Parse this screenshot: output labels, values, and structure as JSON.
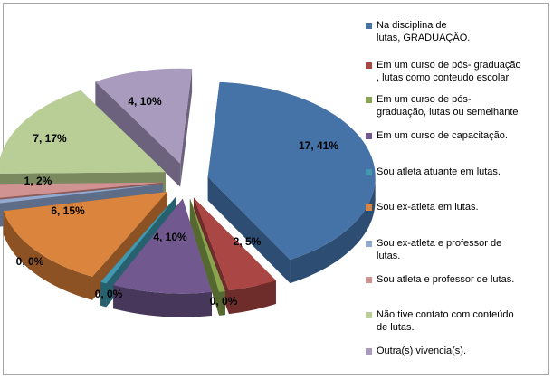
{
  "chart_data": {
    "type": "pie",
    "style": "3d-exploded",
    "legend_position": "right",
    "slices": [
      {
        "label": "Na disciplina de lutas, GRADUAÇÃO.",
        "legend_lines": [
          "Na disciplina de",
          "lutas, GRADUAÇÃO."
        ],
        "value": 17,
        "data_label": "17, 41%",
        "color": "#4572a7",
        "side": "#2e4d73"
      },
      {
        "label": "Em um curso de pós- graduação , lutas como conteudo escolar",
        "legend_lines": [
          "Em um curso de pós- graduação",
          ", lutas como conteudo escolar"
        ],
        "value": 2,
        "data_label": "2, 5%",
        "color": "#aa4643",
        "side": "#6e2c2b"
      },
      {
        "label": "Em um curso de pós- graduação, lutas ou semelhante",
        "legend_lines": [
          "Em um curso de pós-",
          "graduação, lutas ou semelhante"
        ],
        "value": 0,
        "data_label": "0, 0%",
        "color": "#89a54e",
        "side": "#556830"
      },
      {
        "label": "Em um curso de capacitação.",
        "legend_lines": [
          "Em um curso de capacitação."
        ],
        "value": 4,
        "data_label": "4, 10%",
        "color": "#71588f",
        "side": "#47375b"
      },
      {
        "label": "Sou atleta atuante em lutas.",
        "legend_lines": [
          "Sou atleta  atuante em lutas."
        ],
        "value": 0,
        "data_label": "0, 0%",
        "color": "#4198af",
        "side": "#276170"
      },
      {
        "label": "Sou ex-atleta em lutas.",
        "legend_lines": [
          "Sou ex-atleta em lutas."
        ],
        "value": 6,
        "data_label": "6, 15%",
        "color": "#db843d",
        "side": "#8d5223"
      },
      {
        "label": "Sou ex-atleta e professor de lutas.",
        "legend_lines": [
          "Sou ex-atleta e professor de",
          "lutas."
        ],
        "value": 0,
        "data_label": "0, 0%",
        "color": "#93a9cf",
        "side": "#5d6d88"
      },
      {
        "label": "Sou atleta e professor de lutas.",
        "legend_lines": [
          "Sou atleta  e professor de lutas."
        ],
        "value": 1,
        "data_label": "1, 2%",
        "color": "#d19392",
        "side": "#8b5b5a"
      },
      {
        "label": "Não tive contato com conteúdo de lutas.",
        "legend_lines": [
          "Não tive contato com conteúdo",
          "de lutas."
        ],
        "value": 7,
        "data_label": "7, 17%",
        "color": "#b9cd96",
        "side": "#7a8a5e"
      },
      {
        "label": "Outra(s) vivencia(s).",
        "legend_lines": [
          "Outra(s) vivencia(s)."
        ],
        "value": 4,
        "data_label": "4, 10%",
        "color": "#a99bbd",
        "side": "#6d627e"
      }
    ]
  }
}
